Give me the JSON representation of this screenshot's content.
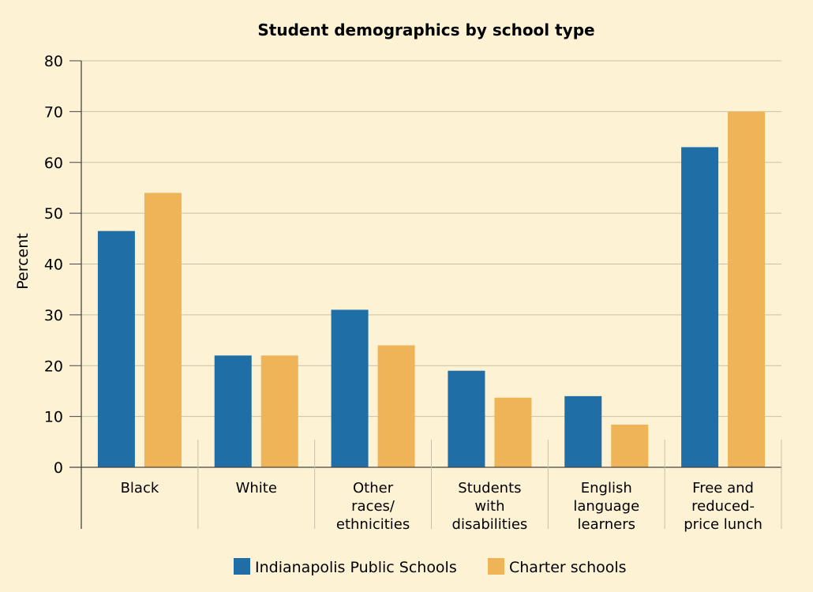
{
  "chart_data": {
    "type": "bar",
    "title": "Student demographics by school type",
    "xlabel": "",
    "ylabel": "Percent",
    "ylim": [
      0,
      80
    ],
    "yticks": [
      0,
      10,
      20,
      30,
      40,
      50,
      60,
      70,
      80
    ],
    "categories": [
      [
        "Black"
      ],
      [
        "White"
      ],
      [
        "Other",
        "races/",
        "ethnicities"
      ],
      [
        "Students",
        "with",
        "disabilities"
      ],
      [
        "English",
        "language",
        "learners"
      ],
      [
        "Free and",
        "reduced-",
        "price lunch"
      ]
    ],
    "series": [
      {
        "name": "Indianapolis Public Schools",
        "color": "#1f6fa6",
        "values": [
          46.5,
          22,
          31,
          19,
          14,
          63
        ]
      },
      {
        "name": "Charter schools",
        "color": "#eeb457",
        "values": [
          54,
          22,
          24,
          13.7,
          8.4,
          70
        ]
      }
    ],
    "legend_position": "bottom",
    "grid": true
  },
  "colors": {
    "background": "#fdf2d4",
    "grid": "#c8c0a8",
    "axis": "#444444"
  }
}
